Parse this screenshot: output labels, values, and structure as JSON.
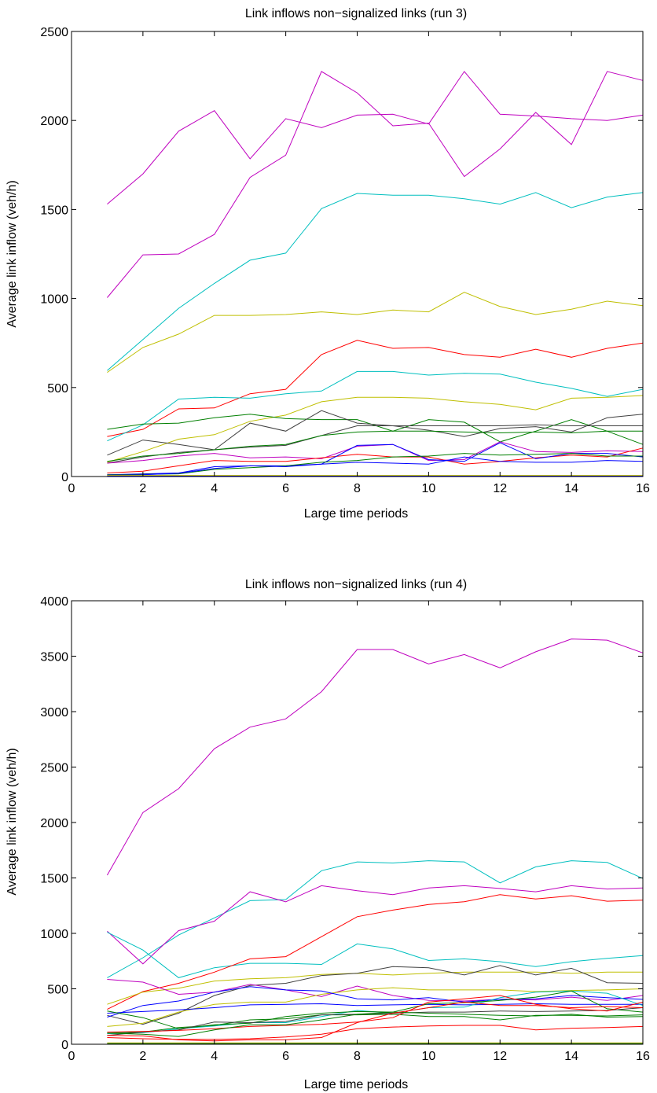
{
  "chart_data": [
    {
      "type": "line",
      "title": "Link inflows non−signalized links (run 3)",
      "xlabel": "Large time periods",
      "ylabel": "Average link inflow (veh/h)",
      "xlim": [
        0,
        16
      ],
      "ylim": [
        0,
        2500
      ],
      "xticks": [
        0,
        2,
        4,
        6,
        8,
        10,
        12,
        14,
        16
      ],
      "yticks": [
        0,
        500,
        1000,
        1500,
        2000,
        2500
      ],
      "grid": false,
      "x": [
        1,
        2,
        3,
        4,
        5,
        6,
        7,
        8,
        9,
        10,
        11,
        12,
        13,
        14,
        15,
        16
      ],
      "series": [
        {
          "color": "#bf00bf",
          "values": [
            1530,
            1700,
            1940,
            2055,
            1785,
            2010,
            1960,
            2030,
            2035,
            1980,
            2275,
            2035,
            2025,
            2010,
            2000,
            2030
          ]
        },
        {
          "color": "#bf00bf",
          "values": [
            1005,
            1245,
            1250,
            1360,
            1680,
            1805,
            2275,
            2155,
            1970,
            1985,
            1685,
            1840,
            2045,
            1865,
            2275,
            2225
          ]
        },
        {
          "color": "#00bfbf",
          "values": [
            595,
            770,
            945,
            1085,
            1215,
            1255,
            1505,
            1590,
            1580,
            1580,
            1560,
            1530,
            1595,
            1510,
            1570,
            1595
          ]
        },
        {
          "color": "#bfbf00",
          "values": [
            585,
            725,
            800,
            905,
            905,
            910,
            925,
            910,
            935,
            925,
            1035,
            955,
            910,
            940,
            985,
            960
          ]
        },
        {
          "color": "#ff0000",
          "values": [
            225,
            265,
            380,
            385,
            465,
            490,
            685,
            765,
            720,
            725,
            685,
            670,
            715,
            670,
            720,
            750
          ]
        },
        {
          "color": "#00bfbf",
          "values": [
            200,
            290,
            435,
            445,
            440,
            465,
            480,
            590,
            590,
            570,
            580,
            575,
            530,
            495,
            450,
            490
          ]
        },
        {
          "color": "#bfbf00",
          "values": [
            80,
            140,
            210,
            235,
            310,
            345,
            420,
            445,
            445,
            440,
            420,
            405,
            375,
            440,
            445,
            455
          ]
        },
        {
          "color": "#007f00",
          "values": [
            265,
            295,
            300,
            330,
            350,
            325,
            320,
            320,
            255,
            320,
            305,
            195,
            255,
            320,
            255,
            180
          ]
        },
        {
          "color": "#404040",
          "values": [
            120,
            205,
            180,
            150,
            300,
            255,
            370,
            300,
            285,
            260,
            225,
            270,
            280,
            250,
            330,
            350
          ]
        },
        {
          "color": "#404040",
          "values": [
            75,
            110,
            135,
            150,
            165,
            175,
            230,
            285,
            285,
            285,
            285,
            285,
            290,
            285,
            285,
            285
          ]
        },
        {
          "color": "#007f00",
          "values": [
            85,
            115,
            130,
            150,
            170,
            180,
            230,
            250,
            255,
            255,
            250,
            245,
            250,
            245,
            255,
            255
          ]
        },
        {
          "color": "#bf00bf",
          "values": [
            75,
            90,
            115,
            130,
            105,
            110,
            100,
            170,
            180,
            90,
            95,
            195,
            140,
            135,
            145,
            140
          ]
        },
        {
          "color": "#ff0000",
          "values": [
            20,
            30,
            60,
            90,
            85,
            85,
            105,
            125,
            110,
            110,
            70,
            85,
            105,
            120,
            110,
            160
          ]
        },
        {
          "color": "#0000ff",
          "values": [
            10,
            15,
            20,
            55,
            60,
            60,
            70,
            175,
            180,
            95,
            85,
            190,
            100,
            130,
            130,
            110
          ]
        },
        {
          "color": "#007f00",
          "values": [
            10,
            12,
            15,
            40,
            50,
            60,
            80,
            90,
            110,
            115,
            130,
            120,
            125,
            130,
            115,
            115
          ]
        },
        {
          "color": "#0000ff",
          "values": [
            8,
            10,
            18,
            45,
            60,
            55,
            70,
            80,
            75,
            70,
            110,
            85,
            80,
            80,
            90,
            85
          ]
        },
        {
          "color": "#404040",
          "values": [
            3,
            3,
            3,
            3,
            3,
            3,
            3,
            3,
            3,
            3,
            3,
            3,
            3,
            3,
            3,
            3
          ]
        },
        {
          "color": "#bfbf00",
          "values": [
            6,
            6,
            6,
            6,
            6,
            6,
            6,
            6,
            6,
            6,
            6,
            6,
            6,
            6,
            6,
            6
          ]
        },
        {
          "color": "#0000ff",
          "values": [
            2,
            2,
            2,
            2,
            2,
            2,
            2,
            2,
            2,
            2,
            2,
            2,
            2,
            2,
            2,
            2
          ]
        }
      ]
    },
    {
      "type": "line",
      "title": "Link inflows non−signalized links (run 4)",
      "xlabel": "Large time periods",
      "ylabel": "Average link inflow (veh/h)",
      "xlim": [
        0,
        16
      ],
      "ylim": [
        0,
        4000
      ],
      "xticks": [
        0,
        2,
        4,
        6,
        8,
        10,
        12,
        14,
        16
      ],
      "yticks": [
        0,
        500,
        1000,
        1500,
        2000,
        2500,
        3000,
        3500,
        4000
      ],
      "grid": false,
      "x": [
        1,
        2,
        3,
        4,
        5,
        6,
        7,
        8,
        9,
        10,
        11,
        12,
        13,
        14,
        15,
        16
      ],
      "series": [
        {
          "color": "#bf00bf",
          "values": [
            1525,
            2090,
            2305,
            2665,
            2860,
            2935,
            3180,
            3560,
            3560,
            3430,
            3515,
            3395,
            3540,
            3655,
            3645,
            3530
          ]
        },
        {
          "color": "#00bfbf",
          "values": [
            600,
            780,
            985,
            1140,
            1295,
            1305,
            1565,
            1645,
            1635,
            1655,
            1645,
            1455,
            1600,
            1655,
            1640,
            1495
          ]
        },
        {
          "color": "#bf00bf",
          "values": [
            1020,
            725,
            1025,
            1110,
            1375,
            1285,
            1430,
            1385,
            1350,
            1410,
            1430,
            1405,
            1375,
            1430,
            1400,
            1410
          ]
        },
        {
          "color": "#00bfbf",
          "values": [
            1010,
            850,
            600,
            690,
            730,
            730,
            720,
            905,
            860,
            755,
            770,
            745,
            700,
            745,
            775,
            800
          ]
        },
        {
          "color": "#ff0000",
          "values": [
            315,
            475,
            550,
            650,
            770,
            790,
            970,
            1150,
            1210,
            1260,
            1285,
            1350,
            1310,
            1340,
            1290,
            1300
          ]
        },
        {
          "color": "#bfbf00",
          "values": [
            360,
            470,
            505,
            570,
            590,
            600,
            630,
            640,
            625,
            640,
            650,
            650,
            650,
            640,
            650,
            650
          ]
        },
        {
          "color": "#404040",
          "values": [
            260,
            180,
            280,
            440,
            530,
            550,
            620,
            640,
            700,
            690,
            625,
            710,
            625,
            685,
            555,
            550
          ]
        },
        {
          "color": "#bf00bf",
          "values": [
            585,
            560,
            450,
            470,
            540,
            490,
            430,
            525,
            440,
            395,
            390,
            405,
            400,
            425,
            395,
            440
          ]
        },
        {
          "color": "#bfbf00",
          "values": [
            160,
            190,
            290,
            360,
            380,
            380,
            450,
            490,
            510,
            490,
            490,
            490,
            475,
            485,
            490,
            500
          ]
        },
        {
          "color": "#0000ff",
          "values": [
            245,
            350,
            390,
            470,
            520,
            490,
            480,
            410,
            400,
            420,
            380,
            405,
            410,
            440,
            420,
            405
          ]
        },
        {
          "color": "#0000ff",
          "values": [
            280,
            295,
            310,
            330,
            355,
            360,
            365,
            350,
            355,
            360,
            355,
            360,
            365,
            360,
            360,
            360
          ]
        },
        {
          "color": "#00bfbf",
          "values": [
            95,
            105,
            140,
            165,
            195,
            195,
            250,
            305,
            280,
            330,
            335,
            420,
            470,
            480,
            460,
            350
          ]
        },
        {
          "color": "#007f00",
          "values": [
            300,
            240,
            140,
            175,
            190,
            250,
            280,
            295,
            290,
            365,
            375,
            395,
            425,
            480,
            320,
            290
          ]
        },
        {
          "color": "#007f00",
          "values": [
            100,
            110,
            150,
            170,
            220,
            230,
            265,
            265,
            270,
            250,
            250,
            220,
            260,
            260,
            255,
            265
          ]
        },
        {
          "color": "#404040",
          "values": [
            80,
            110,
            130,
            200,
            195,
            205,
            265,
            270,
            280,
            290,
            290,
            300,
            295,
            300,
            305,
            330
          ]
        },
        {
          "color": "#ff0000",
          "values": [
            110,
            115,
            125,
            140,
            160,
            170,
            180,
            200,
            240,
            380,
            410,
            440,
            360,
            320,
            300,
            380
          ]
        },
        {
          "color": "#007f00",
          "values": [
            100,
            90,
            70,
            130,
            175,
            175,
            220,
            270,
            290,
            280,
            270,
            260,
            255,
            270,
            245,
            250
          ]
        },
        {
          "color": "#ff0000",
          "values": [
            60,
            50,
            45,
            45,
            50,
            65,
            90,
            140,
            155,
            165,
            170,
            170,
            130,
            145,
            150,
            160
          ]
        },
        {
          "color": "#ff0000",
          "values": [
            80,
            75,
            40,
            30,
            40,
            40,
            60,
            195,
            280,
            330,
            380,
            350,
            350,
            330,
            340,
            330
          ]
        },
        {
          "color": "#404040",
          "values": [
            8,
            8,
            8,
            8,
            8,
            8,
            8,
            8,
            8,
            8,
            8,
            8,
            8,
            8,
            8,
            8
          ]
        },
        {
          "color": "#bfbf00",
          "values": [
            12,
            12,
            12,
            12,
            12,
            12,
            12,
            12,
            12,
            12,
            12,
            12,
            12,
            12,
            12,
            12
          ]
        },
        {
          "color": "#007f00",
          "values": [
            4,
            4,
            4,
            4,
            4,
            4,
            4,
            4,
            4,
            4,
            4,
            4,
            4,
            4,
            4,
            4
          ]
        }
      ]
    }
  ]
}
